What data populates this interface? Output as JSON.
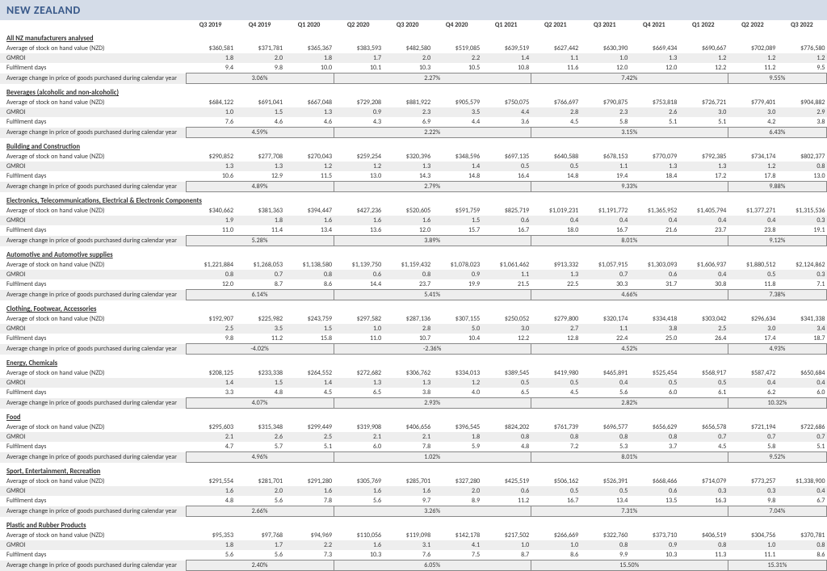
{
  "title": "NEW ZEALAND",
  "periods": [
    "Q3 2019",
    "Q4 2019",
    "Q1 2020",
    "Q2 2020",
    "Q3 2020",
    "Q4 2020",
    "Q1 2021",
    "Q2 2021",
    "Q3 2021",
    "Q4 2021",
    "Q1 2022",
    "Q2 2022",
    "Q3 2022"
  ],
  "rowLabels": {
    "stock": "Average of stock on hand value (NZD)",
    "gmroi": "GMROI",
    "fulfil": "Fulfilment days",
    "acp": "Average change in price of goods purchased during calendar year"
  },
  "sections": [
    {
      "name": "All NZ manufacturers analysed",
      "stock": [
        "$360,581",
        "$371,781",
        "$365,367",
        "$383,593",
        "$482,580",
        "$519,085",
        "$639,519",
        "$627,442",
        "$630,390",
        "$669,434",
        "$690,667",
        "$702,089",
        "$776,580"
      ],
      "gmroi": [
        "1.8",
        "2.0",
        "1.8",
        "1.7",
        "2.0",
        "2.2",
        "1.4",
        "1.1",
        "1.0",
        "1.3",
        "1.2",
        "1.2",
        "1.2"
      ],
      "fulfil": [
        "9.4",
        "9.8",
        "10.0",
        "10.1",
        "10.3",
        "10.5",
        "10.8",
        "11.6",
        "12.0",
        "12.0",
        "12.2",
        "11.2",
        "9.5"
      ],
      "acp": {
        "0": "3.06%",
        "3": "2.27%",
        "7": "7.42%",
        "11": "9.55%"
      }
    },
    {
      "name": "Beverages (alcoholic and non-alcoholic)",
      "stock": [
        "$684,122",
        "$691,041",
        "$667,048",
        "$729,208",
        "$881,922",
        "$905,579",
        "$750,075",
        "$766,697",
        "$790,875",
        "$753,818",
        "$726,721",
        "$779,401",
        "$904,882"
      ],
      "gmroi": [
        "1.0",
        "1.5",
        "1.3",
        "0.9",
        "2.3",
        "3.5",
        "4.4",
        "2.8",
        "2.3",
        "2.6",
        "3.0",
        "3.0",
        "2.9"
      ],
      "fulfil": [
        "7.6",
        "4.6",
        "4.6",
        "4.3",
        "6.9",
        "4.4",
        "3.6",
        "4.5",
        "5.8",
        "5.1",
        "5.1",
        "4.2",
        "3.8"
      ],
      "acp": {
        "0": "4.59%",
        "3": "2.22%",
        "7": "3.15%",
        "11": "6.43%"
      }
    },
    {
      "name": "Building and Construction",
      "stock": [
        "$290,852",
        "$277,708",
        "$270,043",
        "$259,254",
        "$320,396",
        "$348,596",
        "$697,135",
        "$640,588",
        "$678,153",
        "$770,079",
        "$792,385",
        "$734,174",
        "$802,377"
      ],
      "gmroi": [
        "1.3",
        "1.3",
        "1.2",
        "1.2",
        "1.3",
        "1.4",
        "0.5",
        "0.5",
        "1.1",
        "1.3",
        "1.3",
        "1.2",
        "0.8"
      ],
      "fulfil": [
        "10.6",
        "12.9",
        "11.5",
        "13.0",
        "14.3",
        "14.8",
        "16.4",
        "14.8",
        "19.4",
        "18.4",
        "17.2",
        "17.8",
        "13.0"
      ],
      "acp": {
        "0": "4.89%",
        "3": "2.79%",
        "7": "9.33%",
        "11": "9.88%"
      }
    },
    {
      "name": "Electronics, Telecommunications, Electrical & Electronic Components",
      "stock": [
        "$340,662",
        "$381,363",
        "$394,447",
        "$427,236",
        "$520,605",
        "$591,759",
        "$825,719",
        "$1,019,231",
        "$1,191,772",
        "$1,365,952",
        "$1,405,794",
        "$1,377,271",
        "$1,315,536"
      ],
      "gmroi": [
        "1.9",
        "1.8",
        "1.6",
        "1.6",
        "1.6",
        "1.5",
        "0.6",
        "0.4",
        "0.4",
        "0.4",
        "0.4",
        "0.4",
        "0.3"
      ],
      "fulfil": [
        "11.0",
        "11.4",
        "13.4",
        "13.6",
        "12.0",
        "15.7",
        "16.7",
        "18.0",
        "16.7",
        "21.6",
        "23.7",
        "23.8",
        "19.1"
      ],
      "acp": {
        "0": "5.28%",
        "3": "3.89%",
        "7": "8.01%",
        "11": "9.12%"
      }
    },
    {
      "name": "Automotive and Automotive supplies",
      "stock": [
        "$1,221,884",
        "$1,268,053",
        "$1,138,580",
        "$1,139,750",
        "$1,159,432",
        "$1,078,023",
        "$1,061,462",
        "$913,332",
        "$1,057,915",
        "$1,303,093",
        "$1,606,937",
        "$1,880,512",
        "$2,124,862"
      ],
      "gmroi": [
        "0.8",
        "0.7",
        "0.8",
        "0.6",
        "0.8",
        "0.9",
        "1.1",
        "1.3",
        "0.7",
        "0.6",
        "0.4",
        "0.5",
        "0.3"
      ],
      "fulfil": [
        "12.0",
        "8.7",
        "8.6",
        "14.4",
        "23.7",
        "19.9",
        "21.5",
        "22.5",
        "30.3",
        "31.7",
        "30.8",
        "11.8",
        "7.1"
      ],
      "acp": {
        "0": "6.14%",
        "3": "5.41%",
        "7": "4.66%",
        "11": "7.38%"
      }
    },
    {
      "name": "Clothing, Footwear, Accessories",
      "stock": [
        "$192,907",
        "$225,982",
        "$243,759",
        "$297,582",
        "$287,136",
        "$307,155",
        "$250,052",
        "$279,800",
        "$320,174",
        "$334,418",
        "$303,042",
        "$296,634",
        "$341,338"
      ],
      "gmroi": [
        "2.5",
        "3.5",
        "1.5",
        "1.0",
        "2.8",
        "5.0",
        "3.0",
        "2.7",
        "1.1",
        "3.8",
        "2.5",
        "3.0",
        "3.4"
      ],
      "fulfil": [
        "9.8",
        "11.2",
        "15.8",
        "11.0",
        "10.7",
        "10.4",
        "12.2",
        "12.8",
        "22.4",
        "25.0",
        "26.4",
        "17.4",
        "18.7"
      ],
      "acp": {
        "0": "-4.02%",
        "3": "-2.36%",
        "7": "4.52%",
        "11": "4.93%"
      }
    },
    {
      "name": "Energy, Chemicals",
      "stock": [
        "$208,125",
        "$233,338",
        "$264,552",
        "$272,682",
        "$306,762",
        "$334,013",
        "$389,545",
        "$419,980",
        "$465,891",
        "$525,454",
        "$568,917",
        "$587,472",
        "$650,684"
      ],
      "gmroi": [
        "1.4",
        "1.5",
        "1.4",
        "1.3",
        "1.3",
        "1.2",
        "0.5",
        "0.5",
        "0.4",
        "0.5",
        "0.5",
        "0.4",
        "0.4"
      ],
      "fulfil": [
        "3.3",
        "4.8",
        "4.5",
        "6.5",
        "3.8",
        "4.0",
        "6.5",
        "4.5",
        "5.6",
        "6.0",
        "6.1",
        "6.2",
        "6.0"
      ],
      "acp": {
        "0": "4.07%",
        "3": "2.93%",
        "7": "2.82%",
        "11": "10.32%"
      }
    },
    {
      "name": "Food",
      "stock": [
        "$295,603",
        "$315,348",
        "$299,449",
        "$319,908",
        "$406,656",
        "$396,545",
        "$824,202",
        "$761,739",
        "$696,577",
        "$656,629",
        "$656,578",
        "$721,194",
        "$722,686"
      ],
      "gmroi": [
        "2.1",
        "2.6",
        "2.5",
        "2.1",
        "2.1",
        "1.8",
        "0.8",
        "0.8",
        "0.8",
        "0.8",
        "0.7",
        "0.7",
        "0.7"
      ],
      "fulfil": [
        "4.7",
        "5.7",
        "5.1",
        "6.0",
        "7.8",
        "5.9",
        "4.8",
        "7.2",
        "5.3",
        "3.7",
        "4.5",
        "5.8",
        "5.1"
      ],
      "acp": {
        "0": "4.96%",
        "3": "1.02%",
        "7": "8.01%",
        "11": "9.52%"
      }
    },
    {
      "name": "Sport, Entertainment, Recreation",
      "stock": [
        "$291,554",
        "$281,701",
        "$291,280",
        "$305,769",
        "$285,701",
        "$327,280",
        "$425,519",
        "$506,162",
        "$526,391",
        "$668,466",
        "$714,079",
        "$773,257",
        "$1,338,900"
      ],
      "gmroi": [
        "1.6",
        "2.0",
        "1.6",
        "1.6",
        "1.6",
        "2.0",
        "0.6",
        "0.5",
        "0.5",
        "0.6",
        "0.3",
        "0.3",
        "0.4"
      ],
      "fulfil": [
        "4.8",
        "5.6",
        "7.8",
        "5.6",
        "9.7",
        "8.9",
        "11.2",
        "16.7",
        "13.4",
        "13.5",
        "16.3",
        "9.8",
        "6.7"
      ],
      "acp": {
        "0": "2.66%",
        "3": "3.26%",
        "7": "7.31%",
        "11": "7.04%"
      }
    },
    {
      "name": "Plastic and Rubber Products",
      "stock": [
        "$95,353",
        "$97,768",
        "$94,969",
        "$110,056",
        "$119,098",
        "$142,178",
        "$217,502",
        "$266,669",
        "$322,760",
        "$373,710",
        "$406,519",
        "$304,756",
        "$370,781"
      ],
      "gmroi": [
        "1.8",
        "1.7",
        "2.2",
        "1.6",
        "3.1",
        "4.1",
        "1.0",
        "1.0",
        "0.8",
        "0.9",
        "0.8",
        "1.0",
        "0.8"
      ],
      "fulfil": [
        "5.6",
        "5.6",
        "7.3",
        "10.3",
        "7.6",
        "7.5",
        "8.7",
        "8.6",
        "9.9",
        "10.3",
        "11.3",
        "11.1",
        "8.6"
      ],
      "acp": {
        "0": "2.40%",
        "3": "6.05%",
        "7": "15.50%",
        "11": "15.31%"
      }
    }
  ]
}
